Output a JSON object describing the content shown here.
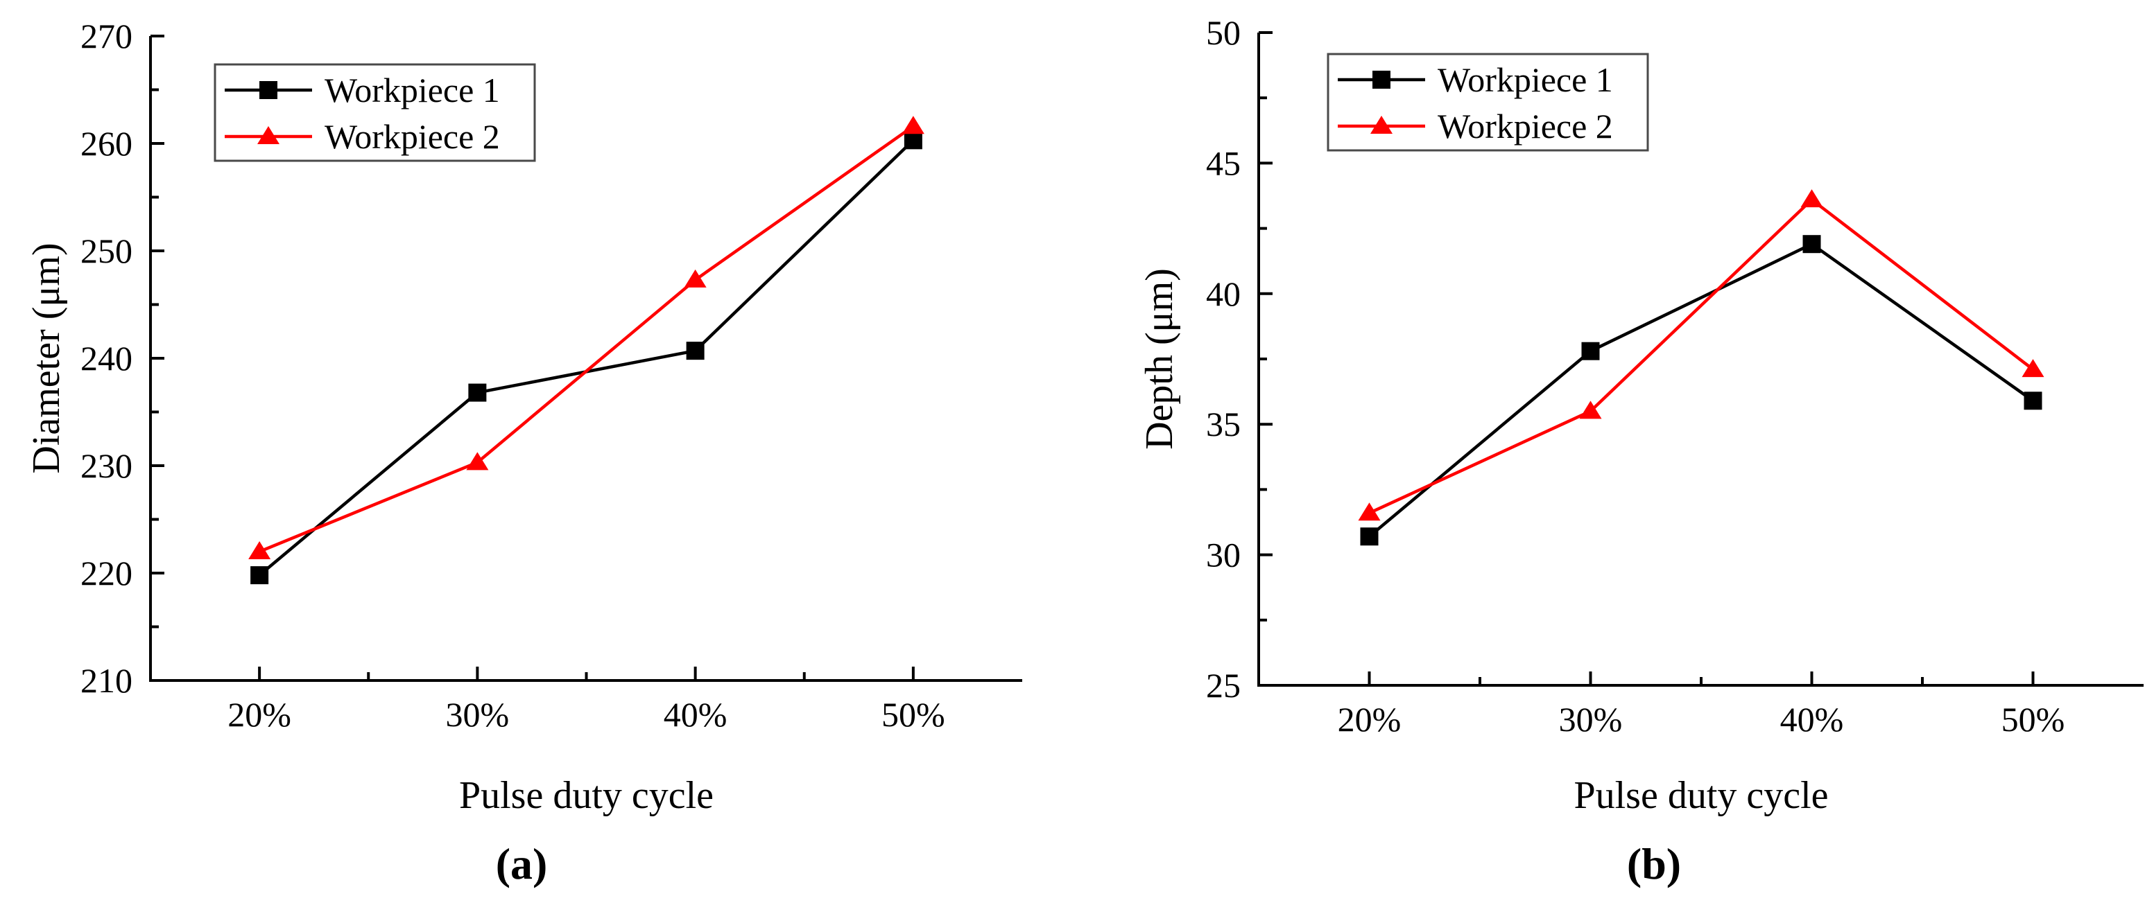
{
  "figure": {
    "background": "#ffffff",
    "axis_color": "#000000",
    "legend_border_color": "#4a4a4a"
  },
  "chart_data": [
    {
      "id": "a",
      "type": "line",
      "sub_label": "(a)",
      "title": "",
      "xlabel": "Pulse duty cycle",
      "ylabel": "Diameter (μm)",
      "categories": [
        "20%",
        "30%",
        "40%",
        "50%"
      ],
      "ylim": [
        210,
        270
      ],
      "ytick_step": 10,
      "ytick_labels": [
        "210",
        "220",
        "230",
        "240",
        "250",
        "260",
        "270"
      ],
      "grid": false,
      "legend_position": "top-left-inside",
      "series": [
        {
          "name": "Workpiece 1",
          "color": "#000000",
          "marker": "square",
          "values": [
            219.8,
            236.8,
            240.7,
            260.3
          ]
        },
        {
          "name": "Workpiece 2",
          "color": "#ff0000",
          "marker": "triangle",
          "values": [
            222.0,
            230.3,
            247.3,
            261.6
          ]
        }
      ]
    },
    {
      "id": "b",
      "type": "line",
      "sub_label": "(b)",
      "title": "",
      "xlabel": "Pulse duty cycle",
      "ylabel": "Depth (μm)",
      "categories": [
        "20%",
        "30%",
        "40%",
        "50%"
      ],
      "ylim": [
        25,
        50
      ],
      "ytick_step": 5,
      "ytick_labels": [
        "25",
        "30",
        "35",
        "40",
        "45",
        "50"
      ],
      "grid": false,
      "legend_position": "top-left-inside",
      "series": [
        {
          "name": "Workpiece 1",
          "color": "#000000",
          "marker": "square",
          "values": [
            30.7,
            37.8,
            41.9,
            35.9
          ]
        },
        {
          "name": "Workpiece 2",
          "color": "#ff0000",
          "marker": "triangle",
          "values": [
            31.6,
            35.5,
            43.6,
            37.1
          ]
        }
      ]
    }
  ]
}
